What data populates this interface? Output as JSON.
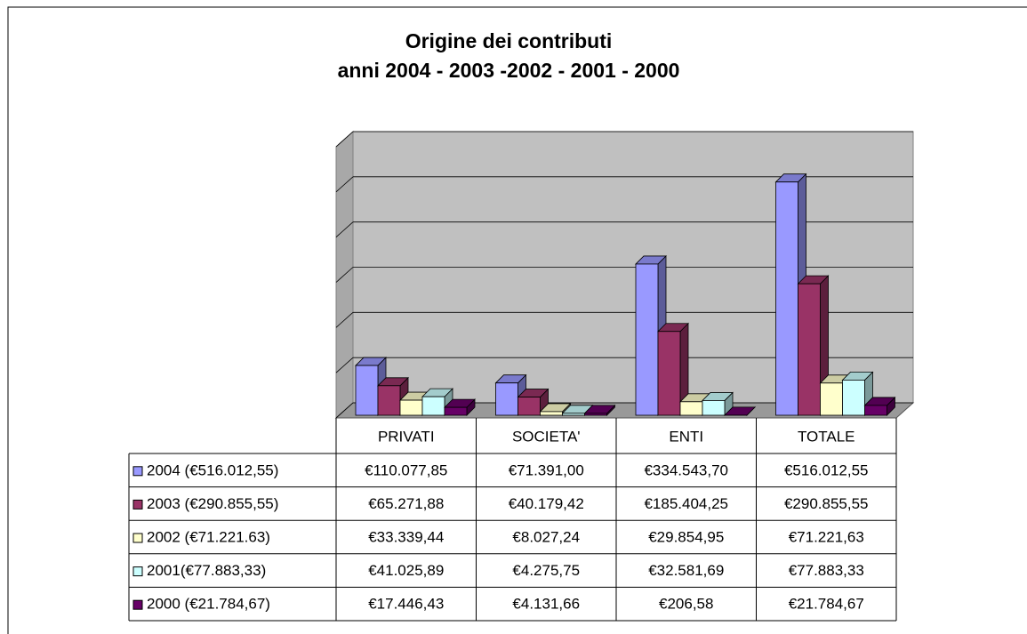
{
  "chart_data": {
    "type": "bar3d",
    "title": "Origine dei contributi",
    "subtitle": "anni 2004 - 2003 -2002 - 2001 - 2000",
    "categories": [
      "PRIVATI",
      "SOCIETA'",
      "ENTI",
      "TOTALE"
    ],
    "series": [
      {
        "name": "2004 (€516.012,55)",
        "color": "#9999ff",
        "values": [
          110077.85,
          71391.0,
          334543.7,
          516012.55
        ],
        "value_labels": [
          "€110.077,85",
          "€71.391,00",
          "€334.543,70",
          "€516.012,55"
        ]
      },
      {
        "name": "2003 (€290.855,55)",
        "color": "#993366",
        "values": [
          65271.88,
          40179.42,
          185404.25,
          290855.55
        ],
        "value_labels": [
          "€65.271,88",
          "€40.179,42",
          "€185.404,25",
          "€290.855,55"
        ]
      },
      {
        "name": "2002 (€71.221.63)",
        "color": "#ffffcc",
        "values": [
          33339.44,
          8027.24,
          29854.95,
          71221.63
        ],
        "value_labels": [
          "€33.339,44",
          "€8.027,24",
          "€29.854,95",
          "€71.221,63"
        ]
      },
      {
        "name": "2001(€77.883,33)",
        "color": "#ccffff",
        "values": [
          41025.89,
          4275.75,
          32581.69,
          77883.33
        ],
        "value_labels": [
          "€41.025,89",
          "€4.275,75",
          "€32.581,69",
          "€77.883,33"
        ]
      },
      {
        "name": "2000 (€21.784,67)",
        "color": "#660066",
        "values": [
          17446.43,
          4131.66,
          206.58,
          21784.67
        ],
        "value_labels": [
          "€17.446,43",
          "€4.131,66",
          "€206,58",
          "€21.784,67"
        ]
      }
    ],
    "ylim": [
      0,
      600000
    ],
    "yticks": [
      0,
      100000,
      200000,
      300000,
      400000,
      500000,
      600000
    ],
    "grid": true
  }
}
